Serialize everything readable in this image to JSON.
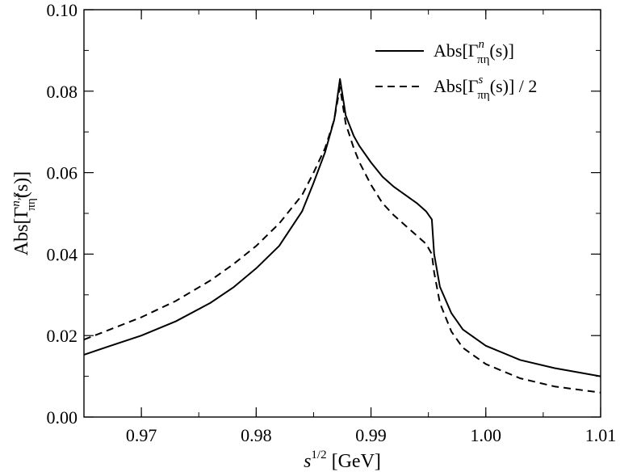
{
  "chart_data": {
    "type": "line",
    "xlabel": {
      "base": "s",
      "sup": "1/2",
      "unit": " [GeV]"
    },
    "ylabel": {
      "prefix": "Abs[Γ",
      "sup": "n,s",
      "sub": "πη",
      "suffix": "(s)]"
    },
    "xlim": [
      0.965,
      1.01
    ],
    "ylim": [
      0.0,
      0.1
    ],
    "xticks": [
      0.97,
      0.98,
      0.99,
      1.0,
      1.01
    ],
    "xtick_labels": [
      "0.97",
      "0.98",
      "0.99",
      "1.00",
      "1.01"
    ],
    "yticks": [
      0.0,
      0.02,
      0.04,
      0.06,
      0.08,
      0.1
    ],
    "ytick_labels": [
      "0.00",
      "0.02",
      "0.04",
      "0.06",
      "0.08",
      "0.10"
    ],
    "legend_position": "top-right",
    "grid": false,
    "series": [
      {
        "name": "Abs[Γ^n_πη(s)]",
        "legend": {
          "prefix": "Abs[Γ",
          "sup": "n",
          "sub": "πη",
          "suffix": "(s)]"
        },
        "style": "solid",
        "color": "#000000",
        "x": [
          0.965,
          0.967,
          0.97,
          0.973,
          0.976,
          0.978,
          0.98,
          0.982,
          0.984,
          0.985,
          0.986,
          0.9868,
          0.9873,
          0.9878,
          0.9885,
          0.989,
          0.99,
          0.991,
          0.992,
          0.993,
          0.994,
          0.9948,
          0.9953,
          0.9955,
          0.996,
          0.997,
          0.998,
          1.0,
          1.003,
          1.006,
          1.01
        ],
        "y": [
          0.0153,
          0.0172,
          0.02,
          0.0235,
          0.028,
          0.0318,
          0.0365,
          0.042,
          0.0505,
          0.0575,
          0.065,
          0.073,
          0.083,
          0.074,
          0.069,
          0.0665,
          0.0625,
          0.059,
          0.0565,
          0.0545,
          0.0525,
          0.0505,
          0.0485,
          0.04,
          0.032,
          0.0255,
          0.0215,
          0.0175,
          0.014,
          0.012,
          0.01
        ]
      },
      {
        "name": "Abs[Γ^s_πη(s)] / 2",
        "legend": {
          "prefix": "Abs[Γ",
          "sup": "s",
          "sub": "πη",
          "suffix": "(s)] / 2"
        },
        "style": "dashed",
        "color": "#000000",
        "x": [
          0.965,
          0.967,
          0.97,
          0.973,
          0.976,
          0.978,
          0.98,
          0.982,
          0.984,
          0.985,
          0.986,
          0.9868,
          0.9873,
          0.9878,
          0.9885,
          0.989,
          0.99,
          0.991,
          0.992,
          0.993,
          0.994,
          0.9948,
          0.9953,
          0.9955,
          0.996,
          0.997,
          0.998,
          1.0,
          1.003,
          1.006,
          1.01
        ],
        "y": [
          0.019,
          0.0212,
          0.0245,
          0.0285,
          0.0335,
          0.0375,
          0.042,
          0.0475,
          0.0545,
          0.06,
          0.066,
          0.073,
          0.081,
          0.072,
          0.066,
          0.0625,
          0.057,
          0.0525,
          0.0495,
          0.047,
          0.0445,
          0.0425,
          0.04,
          0.0355,
          0.028,
          0.021,
          0.017,
          0.013,
          0.0095,
          0.0075,
          0.006
        ]
      }
    ]
  }
}
